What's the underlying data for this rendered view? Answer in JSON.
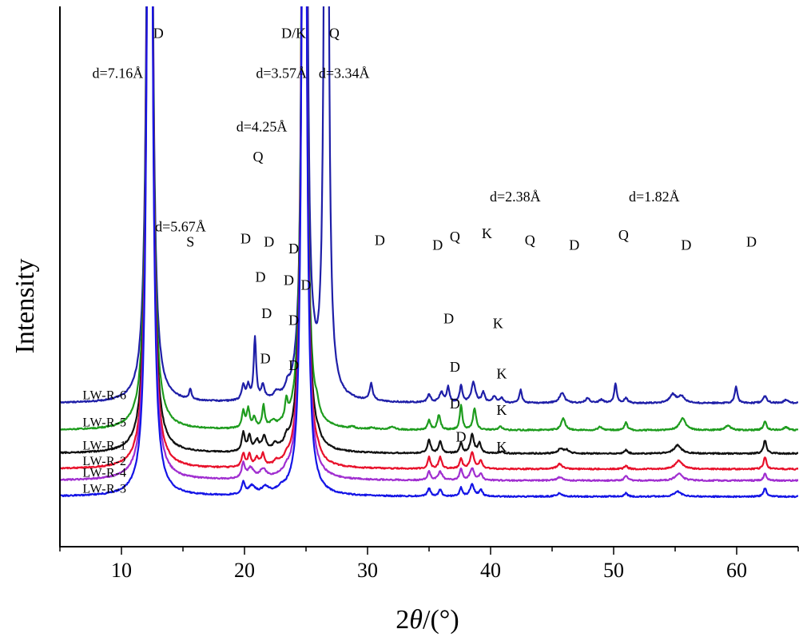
{
  "chart_data": {
    "type": "line",
    "xlabel_prefix": "2",
    "xlabel_theta": "θ",
    "xlabel_suffix": "/(°)",
    "ylabel": "Intensity",
    "xlim": [
      5,
      65
    ],
    "xticks": [
      10,
      20,
      30,
      40,
      50,
      60
    ],
    "grid": false,
    "series": [
      {
        "name": "LW-R-6",
        "color": "#1f1fa8",
        "baseline": 0.86,
        "peaks": [
          [
            12.3,
            8.0,
            0.18
          ],
          [
            15.6,
            0.06,
            0.12
          ],
          [
            19.9,
            0.09,
            0.15
          ],
          [
            20.3,
            0.08,
            0.15
          ],
          [
            20.85,
            0.37,
            0.12
          ],
          [
            21.5,
            0.08,
            0.15
          ],
          [
            22.6,
            0.03,
            0.2
          ],
          [
            23.5,
            0.04,
            0.15
          ],
          [
            24.9,
            8.0,
            0.16
          ],
          [
            25.6,
            0.05,
            0.2
          ],
          [
            26.65,
            8.0,
            0.14
          ],
          [
            30.3,
            0.1,
            0.15
          ],
          [
            35.0,
            0.05,
            0.15
          ],
          [
            36.0,
            0.06,
            0.2
          ],
          [
            36.55,
            0.09,
            0.12
          ],
          [
            37.6,
            0.1,
            0.13
          ],
          [
            38.6,
            0.12,
            0.2
          ],
          [
            39.4,
            0.06,
            0.15
          ],
          [
            40.3,
            0.04,
            0.15
          ],
          [
            40.9,
            0.03,
            0.15
          ],
          [
            42.45,
            0.08,
            0.12
          ],
          [
            45.8,
            0.06,
            0.25
          ],
          [
            47.9,
            0.03,
            0.2
          ],
          [
            49.0,
            0.02,
            0.2
          ],
          [
            50.15,
            0.12,
            0.12
          ],
          [
            51.0,
            0.03,
            0.15
          ],
          [
            54.8,
            0.05,
            0.3
          ],
          [
            55.5,
            0.04,
            0.3
          ],
          [
            59.95,
            0.1,
            0.13
          ],
          [
            62.3,
            0.04,
            0.2
          ],
          [
            64.0,
            0.02,
            0.2
          ]
        ]
      },
      {
        "name": "LW-R-5",
        "color": "#1e9c1e",
        "baseline": 0.698,
        "peaks": [
          [
            12.3,
            8.0,
            0.18
          ],
          [
            19.9,
            0.1,
            0.14
          ],
          [
            20.3,
            0.11,
            0.14
          ],
          [
            20.8,
            0.06,
            0.15
          ],
          [
            21.55,
            0.13,
            0.12
          ],
          [
            22.3,
            0.03,
            0.2
          ],
          [
            23.4,
            0.11,
            0.12
          ],
          [
            24.85,
            8.0,
            0.16
          ],
          [
            25.9,
            0.05,
            0.15
          ],
          [
            28.8,
            0.01,
            0.2
          ],
          [
            30.4,
            0.01,
            0.2
          ],
          [
            32.0,
            0.02,
            0.2
          ],
          [
            35.0,
            0.06,
            0.13
          ],
          [
            35.8,
            0.09,
            0.15
          ],
          [
            37.6,
            0.15,
            0.12
          ],
          [
            38.7,
            0.13,
            0.15
          ],
          [
            40.8,
            0.02,
            0.2
          ],
          [
            45.9,
            0.07,
            0.2
          ],
          [
            48.9,
            0.02,
            0.2
          ],
          [
            51.0,
            0.05,
            0.13
          ],
          [
            55.6,
            0.07,
            0.3
          ],
          [
            59.3,
            0.03,
            0.25
          ],
          [
            62.3,
            0.05,
            0.15
          ],
          [
            64.0,
            0.02,
            0.2
          ]
        ]
      },
      {
        "name": "LW-R-1",
        "color": "#111111",
        "baseline": 0.558,
        "peaks": [
          [
            12.3,
            8.0,
            0.18
          ],
          [
            19.9,
            0.11,
            0.15
          ],
          [
            20.4,
            0.09,
            0.15
          ],
          [
            21.0,
            0.06,
            0.2
          ],
          [
            21.6,
            0.08,
            0.2
          ],
          [
            22.5,
            0.03,
            0.2
          ],
          [
            23.4,
            0.04,
            0.15
          ],
          [
            24.85,
            8.0,
            0.16
          ],
          [
            26.0,
            0.02,
            0.2
          ],
          [
            35.0,
            0.08,
            0.15
          ],
          [
            35.9,
            0.07,
            0.15
          ],
          [
            37.6,
            0.06,
            0.13
          ],
          [
            38.5,
            0.11,
            0.18
          ],
          [
            39.1,
            0.06,
            0.15
          ],
          [
            40.9,
            0.01,
            0.2
          ],
          [
            45.7,
            0.03,
            0.25
          ],
          [
            46.2,
            0.02,
            0.2
          ],
          [
            51.0,
            0.02,
            0.15
          ],
          [
            55.2,
            0.05,
            0.35
          ],
          [
            62.3,
            0.08,
            0.14
          ]
        ]
      },
      {
        "name": "LW-R-2",
        "color": "#e8102a",
        "baseline": 0.465,
        "peaks": [
          [
            12.3,
            8.0,
            0.18
          ],
          [
            19.9,
            0.08,
            0.15
          ],
          [
            20.4,
            0.07,
            0.15
          ],
          [
            21.0,
            0.05,
            0.2
          ],
          [
            21.5,
            0.07,
            0.15
          ],
          [
            22.6,
            0.02,
            0.2
          ],
          [
            23.4,
            0.02,
            0.15
          ],
          [
            24.85,
            8.0,
            0.16
          ],
          [
            26.0,
            0.02,
            0.2
          ],
          [
            35.0,
            0.07,
            0.13
          ],
          [
            35.9,
            0.07,
            0.15
          ],
          [
            37.6,
            0.06,
            0.13
          ],
          [
            38.5,
            0.1,
            0.18
          ],
          [
            39.2,
            0.05,
            0.15
          ],
          [
            45.6,
            0.03,
            0.25
          ],
          [
            51.0,
            0.02,
            0.15
          ],
          [
            55.3,
            0.05,
            0.35
          ],
          [
            62.3,
            0.07,
            0.14
          ]
        ]
      },
      {
        "name": "LW-R-4",
        "color": "#a02ed0",
        "baseline": 0.396,
        "peaks": [
          [
            12.3,
            8.0,
            0.18
          ],
          [
            19.9,
            0.09,
            0.15
          ],
          [
            20.5,
            0.06,
            0.3
          ],
          [
            21.5,
            0.05,
            0.3
          ],
          [
            23.4,
            0.02,
            0.2
          ],
          [
            24.85,
            8.0,
            0.16
          ],
          [
            35.0,
            0.05,
            0.15
          ],
          [
            35.9,
            0.05,
            0.2
          ],
          [
            37.6,
            0.07,
            0.13
          ],
          [
            38.5,
            0.07,
            0.2
          ],
          [
            39.2,
            0.04,
            0.15
          ],
          [
            45.6,
            0.02,
            0.25
          ],
          [
            51.0,
            0.03,
            0.14
          ],
          [
            55.3,
            0.04,
            0.35
          ],
          [
            62.3,
            0.04,
            0.14
          ]
        ]
      },
      {
        "name": "LW-R-3",
        "color": "#1414e6",
        "baseline": 0.3,
        "peaks": [
          [
            12.3,
            8.0,
            0.18
          ],
          [
            19.9,
            0.07,
            0.15
          ],
          [
            20.6,
            0.05,
            0.35
          ],
          [
            21.7,
            0.04,
            0.35
          ],
          [
            23.0,
            0.02,
            0.4
          ],
          [
            24.85,
            8.0,
            0.16
          ],
          [
            35.0,
            0.05,
            0.14
          ],
          [
            35.9,
            0.04,
            0.15
          ],
          [
            37.6,
            0.05,
            0.13
          ],
          [
            38.5,
            0.07,
            0.2
          ],
          [
            39.2,
            0.04,
            0.15
          ],
          [
            45.6,
            0.02,
            0.25
          ],
          [
            51.0,
            0.02,
            0.14
          ],
          [
            55.2,
            0.03,
            0.35
          ],
          [
            62.3,
            0.05,
            0.14
          ]
        ]
      }
    ],
    "annotations": [
      {
        "text": "D",
        "x": 13.0,
        "y": 3.05
      },
      {
        "text": "d=7.16Å",
        "x": 9.7,
        "y": 2.81
      },
      {
        "text": "D/K",
        "x": 24.0,
        "y": 3.05
      },
      {
        "text": "d=3.57Å",
        "x": 23.0,
        "y": 2.81
      },
      {
        "text": "Q",
        "x": 27.3,
        "y": 3.05
      },
      {
        "text": "d=3.34Å",
        "x": 28.1,
        "y": 2.81
      },
      {
        "text": "d=4.25Å",
        "x": 21.4,
        "y": 2.49
      },
      {
        "text": "Q",
        "x": 21.1,
        "y": 2.31
      },
      {
        "text": "d=5.67Å",
        "x": 14.8,
        "y": 1.89
      },
      {
        "text": "S",
        "x": 15.6,
        "y": 1.8
      },
      {
        "text": "D",
        "x": 20.1,
        "y": 1.82
      },
      {
        "text": "D",
        "x": 22.0,
        "y": 1.8
      },
      {
        "text": "D",
        "x": 24.0,
        "y": 1.76
      },
      {
        "text": "D",
        "x": 31.0,
        "y": 1.81
      },
      {
        "text": "D",
        "x": 35.7,
        "y": 1.78
      },
      {
        "text": "Q",
        "x": 37.1,
        "y": 1.83
      },
      {
        "text": "K",
        "x": 39.7,
        "y": 1.85
      },
      {
        "text": "Q",
        "x": 43.2,
        "y": 1.81
      },
      {
        "text": "D",
        "x": 46.8,
        "y": 1.78
      },
      {
        "text": "Q",
        "x": 50.8,
        "y": 1.84
      },
      {
        "text": "D",
        "x": 55.9,
        "y": 1.78
      },
      {
        "text": "D",
        "x": 61.2,
        "y": 1.8
      },
      {
        "text": "d=2.38Å",
        "x": 42.0,
        "y": 2.07
      },
      {
        "text": "d=1.82Å",
        "x": 53.3,
        "y": 2.07
      },
      {
        "text": "D",
        "x": 21.3,
        "y": 1.59
      },
      {
        "text": "D",
        "x": 23.6,
        "y": 1.57
      },
      {
        "text": "D",
        "x": 25.0,
        "y": 1.54
      },
      {
        "text": "D",
        "x": 21.8,
        "y": 1.37
      },
      {
        "text": "D",
        "x": 24.0,
        "y": 1.33
      },
      {
        "text": "D",
        "x": 36.6,
        "y": 1.34
      },
      {
        "text": "K",
        "x": 40.6,
        "y": 1.31
      },
      {
        "text": "D",
        "x": 21.7,
        "y": 1.1
      },
      {
        "text": "D",
        "x": 24.0,
        "y": 1.06
      },
      {
        "text": "D",
        "x": 37.1,
        "y": 1.05
      },
      {
        "text": "K",
        "x": 40.9,
        "y": 1.01
      },
      {
        "text": "D",
        "x": 37.1,
        "y": 0.83
      },
      {
        "text": "K",
        "x": 40.9,
        "y": 0.79
      },
      {
        "text": "D",
        "x": 37.6,
        "y": 0.63
      },
      {
        "text": "K",
        "x": 40.9,
        "y": 0.57
      }
    ]
  }
}
